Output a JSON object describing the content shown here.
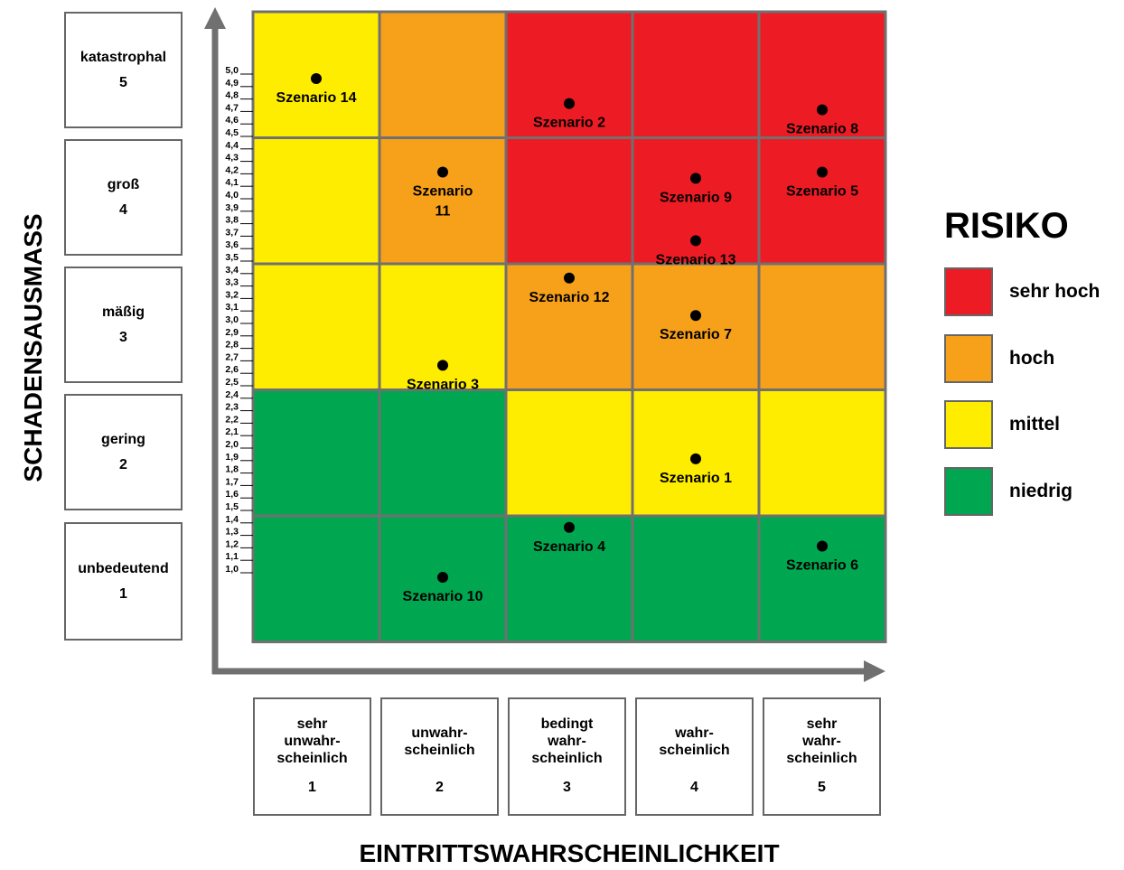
{
  "y_axis": {
    "title": "SCHADENSAUSMASS",
    "levels": [
      {
        "label": "katastrophal",
        "value": "5"
      },
      {
        "label": "groß",
        "value": "4"
      },
      {
        "label": "mäßig",
        "value": "3"
      },
      {
        "label": "gering",
        "value": "2"
      },
      {
        "label": "unbedeutend",
        "value": "1"
      }
    ],
    "ticks": [
      "5,0",
      "4,9",
      "4,8",
      "4,7",
      "4,6",
      "4,5",
      "4,4",
      "4,3",
      "4,2",
      "4,1",
      "4,0",
      "3,9",
      "3,8",
      "3,7",
      "3,6",
      "3,5",
      "3,4",
      "3,3",
      "3,2",
      "3,1",
      "3,0",
      "2,9",
      "2,8",
      "2,7",
      "2,6",
      "2,5",
      "2,4",
      "2,3",
      "2,2",
      "2,1",
      "2,0",
      "1,9",
      "1,8",
      "1,7",
      "1,6",
      "1,5",
      "1,4",
      "1,3",
      "1,2",
      "1,1",
      "1,0"
    ]
  },
  "x_axis": {
    "title": "EINTRITTSWAHRSCHEINLICHKEIT",
    "levels": [
      {
        "lines": [
          "sehr",
          "unwahr-",
          "scheinlich"
        ],
        "value": "1"
      },
      {
        "lines": [
          "unwahr-",
          "scheinlich"
        ],
        "value": "2"
      },
      {
        "lines": [
          "bedingt",
          "wahr-",
          "scheinlich"
        ],
        "value": "3"
      },
      {
        "lines": [
          "wahr-",
          "scheinlich"
        ],
        "value": "4"
      },
      {
        "lines": [
          "sehr",
          "wahr-",
          "scheinlich"
        ],
        "value": "5"
      }
    ]
  },
  "colors": {
    "sehr_hoch": "#ED1C24",
    "hoch": "#F7A11A",
    "mittel": "#FFED00",
    "niedrig": "#00A650",
    "grid_line": "#707070",
    "arrow": "#707070"
  },
  "grid": [
    [
      "mittel",
      "hoch",
      "sehr_hoch",
      "sehr_hoch",
      "sehr_hoch"
    ],
    [
      "mittel",
      "hoch",
      "sehr_hoch",
      "sehr_hoch",
      "sehr_hoch"
    ],
    [
      "mittel",
      "mittel",
      "hoch",
      "hoch",
      "hoch"
    ],
    [
      "niedrig",
      "niedrig",
      "mittel",
      "mittel",
      "mittel"
    ],
    [
      "niedrig",
      "niedrig",
      "niedrig",
      "niedrig",
      "niedrig"
    ]
  ],
  "scenarios": [
    {
      "lines": [
        "Szenario 14"
      ],
      "likelihood": 1.5,
      "severity": 5.0,
      "label_pos": "below"
    },
    {
      "lines": [
        "Szenario 2"
      ],
      "likelihood": 3.5,
      "severity": 4.8,
      "label_pos": "below"
    },
    {
      "lines": [
        "Szenario 8"
      ],
      "likelihood": 5.5,
      "severity": 4.75,
      "label_pos": "below"
    },
    {
      "lines": [
        "Szenario",
        "11"
      ],
      "likelihood": 2.5,
      "severity": 4.25,
      "label_pos": "below"
    },
    {
      "lines": [
        "Szenario 9"
      ],
      "likelihood": 4.5,
      "severity": 4.2,
      "label_pos": "below"
    },
    {
      "lines": [
        "Szenario 5"
      ],
      "likelihood": 5.5,
      "severity": 4.25,
      "label_pos": "below"
    },
    {
      "lines": [
        "Szenario 13"
      ],
      "likelihood": 4.5,
      "severity": 3.7,
      "label_pos": "below"
    },
    {
      "lines": [
        "Szenario 12"
      ],
      "likelihood": 3.5,
      "severity": 3.4,
      "label_pos": "below"
    },
    {
      "lines": [
        "Szenario 7"
      ],
      "likelihood": 4.5,
      "severity": 3.1,
      "label_pos": "below"
    },
    {
      "lines": [
        "Szenario 3"
      ],
      "likelihood": 2.5,
      "severity": 2.7,
      "label_pos": "below"
    },
    {
      "lines": [
        "Szenario 1"
      ],
      "likelihood": 4.5,
      "severity": 1.95,
      "label_pos": "below"
    },
    {
      "lines": [
        "Szenario 4"
      ],
      "likelihood": 3.5,
      "severity": 1.4,
      "label_pos": "below"
    },
    {
      "lines": [
        "Szenario 6"
      ],
      "likelihood": 5.5,
      "severity": 1.25,
      "label_pos": "below"
    },
    {
      "lines": [
        "Szenario 10"
      ],
      "likelihood": 2.5,
      "severity": 1.0,
      "label_pos": "below"
    }
  ],
  "legend": {
    "title": "RISIKO",
    "items": [
      {
        "key": "sehr_hoch",
        "label": "sehr hoch"
      },
      {
        "key": "hoch",
        "label": "hoch"
      },
      {
        "key": "mittel",
        "label": "mittel"
      },
      {
        "key": "niedrig",
        "label": "niedrig"
      }
    ]
  }
}
